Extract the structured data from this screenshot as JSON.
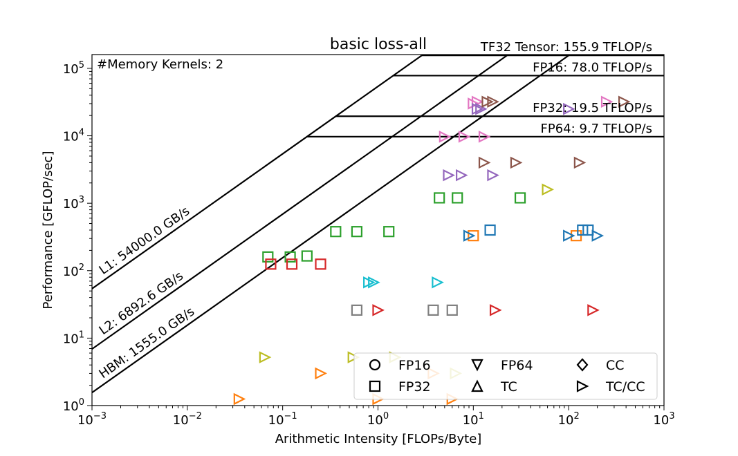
{
  "chart_data": {
    "type": "scatter",
    "title": "basic loss-all",
    "xlabel": "Arithmetic Intensity [FLOPs/Byte]",
    "ylabel": "Performance [GFLOP/sec]",
    "xscale": "log",
    "yscale": "log",
    "xlim": [
      0.001,
      1000
    ],
    "ylim": [
      1,
      160000
    ],
    "x_ticks": [
      0.001,
      0.01,
      0.1,
      1,
      10,
      100,
      1000
    ],
    "y_ticks": [
      1,
      10,
      100,
      1000,
      10000,
      100000
    ],
    "annotation": "#Memory Kernels: 2",
    "ceilings": [
      {
        "label": "TF32 Tensor: 155.9 TFLOP/s",
        "value_gflops": 155900
      },
      {
        "label": "FP16: 78.0 TFLOP/s",
        "value_gflops": 78000
      },
      {
        "label": "FP32: 19.5 TFLOP/s",
        "value_gflops": 19500
      },
      {
        "label": "FP64: 9.7 TFLOP/s",
        "value_gflops": 9700
      }
    ],
    "bandwidths": [
      {
        "label": "L1: 54000.0 GB/s",
        "value_gbs": 54000
      },
      {
        "label": "L2: 6892.6 GB/s",
        "value_gbs": 6892.6
      },
      {
        "label": "HBM: 1555.0 GB/s",
        "value_gbs": 1555.0
      }
    ],
    "legend": {
      "position": "lower-right",
      "items": [
        {
          "label": "FP16",
          "marker": "circle"
        },
        {
          "label": "FP64",
          "marker": "triangle-down"
        },
        {
          "label": "CC",
          "marker": "diamond"
        },
        {
          "label": "FP32",
          "marker": "square"
        },
        {
          "label": "TC",
          "marker": "triangle-up"
        },
        {
          "label": "TC/CC",
          "marker": "triangle-right"
        }
      ]
    },
    "points": [
      {
        "x": 0.07,
        "y": 160,
        "marker": "square",
        "color": "#2ca02c"
      },
      {
        "x": 0.12,
        "y": 160,
        "marker": "square",
        "color": "#2ca02c"
      },
      {
        "x": 0.18,
        "y": 165,
        "marker": "square",
        "color": "#2ca02c"
      },
      {
        "x": 0.36,
        "y": 380,
        "marker": "square",
        "color": "#2ca02c"
      },
      {
        "x": 0.6,
        "y": 380,
        "marker": "square",
        "color": "#2ca02c"
      },
      {
        "x": 1.3,
        "y": 380,
        "marker": "square",
        "color": "#2ca02c"
      },
      {
        "x": 4.4,
        "y": 1200,
        "marker": "square",
        "color": "#2ca02c"
      },
      {
        "x": 6.8,
        "y": 1200,
        "marker": "square",
        "color": "#2ca02c"
      },
      {
        "x": 31,
        "y": 1200,
        "marker": "square",
        "color": "#2ca02c"
      },
      {
        "x": 0.075,
        "y": 125,
        "marker": "square",
        "color": "#d62728"
      },
      {
        "x": 0.125,
        "y": 125,
        "marker": "square",
        "color": "#d62728"
      },
      {
        "x": 0.25,
        "y": 125,
        "marker": "square",
        "color": "#d62728"
      },
      {
        "x": 0.6,
        "y": 26,
        "marker": "square",
        "color": "#7f7f7f"
      },
      {
        "x": 3.8,
        "y": 26,
        "marker": "square",
        "color": "#7f7f7f"
      },
      {
        "x": 6.0,
        "y": 26,
        "marker": "square",
        "color": "#7f7f7f"
      },
      {
        "x": 10,
        "y": 330,
        "marker": "square",
        "color": "#ff7f0e"
      },
      {
        "x": 120,
        "y": 330,
        "marker": "square",
        "color": "#ff7f0e"
      },
      {
        "x": 15,
        "y": 400,
        "marker": "square",
        "color": "#1f77b4"
      },
      {
        "x": 140,
        "y": 400,
        "marker": "square",
        "color": "#1f77b4"
      },
      {
        "x": 160,
        "y": 400,
        "marker": "square",
        "color": "#1f77b4"
      },
      {
        "x": 9,
        "y": 330,
        "marker": "triangle-right",
        "color": "#1f77b4"
      },
      {
        "x": 100,
        "y": 330,
        "marker": "triangle-right",
        "color": "#1f77b4"
      },
      {
        "x": 200,
        "y": 330,
        "marker": "triangle-right",
        "color": "#1f77b4"
      },
      {
        "x": 10,
        "y": 30000,
        "marker": "triangle-right",
        "color": "#e377c2"
      },
      {
        "x": 11,
        "y": 32000,
        "marker": "triangle-right",
        "color": "#e377c2"
      },
      {
        "x": 250,
        "y": 32000,
        "marker": "triangle-right",
        "color": "#e377c2"
      },
      {
        "x": 5,
        "y": 9700,
        "marker": "triangle-right",
        "color": "#e377c2"
      },
      {
        "x": 8,
        "y": 9700,
        "marker": "triangle-right",
        "color": "#e377c2"
      },
      {
        "x": 13,
        "y": 9700,
        "marker": "triangle-right",
        "color": "#e377c2"
      },
      {
        "x": 11,
        "y": 25000,
        "marker": "triangle-right",
        "color": "#9467bd"
      },
      {
        "x": 12,
        "y": 25000,
        "marker": "triangle-right",
        "color": "#9467bd"
      },
      {
        "x": 100,
        "y": 25000,
        "marker": "triangle-right",
        "color": "#9467bd"
      },
      {
        "x": 5.5,
        "y": 2600,
        "marker": "triangle-right",
        "color": "#9467bd"
      },
      {
        "x": 7.5,
        "y": 2600,
        "marker": "triangle-right",
        "color": "#9467bd"
      },
      {
        "x": 16,
        "y": 2600,
        "marker": "triangle-right",
        "color": "#9467bd"
      },
      {
        "x": 14,
        "y": 32000,
        "marker": "triangle-right",
        "color": "#8c564b"
      },
      {
        "x": 16,
        "y": 32000,
        "marker": "triangle-right",
        "color": "#8c564b"
      },
      {
        "x": 380,
        "y": 32000,
        "marker": "triangle-right",
        "color": "#8c564b"
      },
      {
        "x": 13,
        "y": 4000,
        "marker": "triangle-right",
        "color": "#8c564b"
      },
      {
        "x": 28,
        "y": 4000,
        "marker": "triangle-right",
        "color": "#8c564b"
      },
      {
        "x": 130,
        "y": 4000,
        "marker": "triangle-right",
        "color": "#8c564b"
      },
      {
        "x": 60,
        "y": 1600,
        "marker": "triangle-right",
        "color": "#bcbd22"
      },
      {
        "x": 0.065,
        "y": 5.2,
        "marker": "triangle-right",
        "color": "#bcbd22"
      },
      {
        "x": 0.55,
        "y": 5.2,
        "marker": "triangle-right",
        "color": "#bcbd22"
      },
      {
        "x": 1.5,
        "y": 5.2,
        "marker": "triangle-right",
        "color": "#bcbd22"
      },
      {
        "x": 6.5,
        "y": 3.0,
        "marker": "triangle-right",
        "color": "#bcbd22"
      },
      {
        "x": 0.8,
        "y": 67,
        "marker": "triangle-right",
        "color": "#17becf"
      },
      {
        "x": 0.9,
        "y": 67,
        "marker": "triangle-right",
        "color": "#17becf"
      },
      {
        "x": 4.2,
        "y": 67,
        "marker": "triangle-right",
        "color": "#17becf"
      },
      {
        "x": 1.0,
        "y": 26,
        "marker": "triangle-right",
        "color": "#d62728"
      },
      {
        "x": 17,
        "y": 26,
        "marker": "triangle-right",
        "color": "#d62728"
      },
      {
        "x": 180,
        "y": 26,
        "marker": "triangle-right",
        "color": "#d62728"
      },
      {
        "x": 0.25,
        "y": 3.0,
        "marker": "triangle-right",
        "color": "#ff7f0e"
      },
      {
        "x": 3.8,
        "y": 3.0,
        "marker": "triangle-right",
        "color": "#ff7f0e"
      },
      {
        "x": 0.035,
        "y": 1.25,
        "marker": "triangle-right",
        "color": "#ff7f0e"
      },
      {
        "x": 1.0,
        "y": 1.25,
        "marker": "triangle-right",
        "color": "#ff7f0e"
      },
      {
        "x": 6.0,
        "y": 1.25,
        "marker": "triangle-right",
        "color": "#ff7f0e"
      }
    ]
  }
}
